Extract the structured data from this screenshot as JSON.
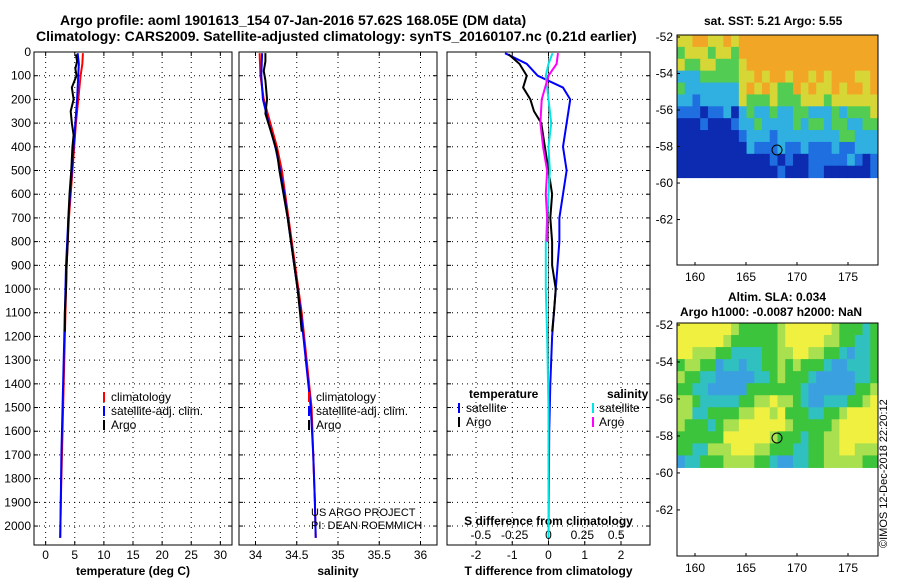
{
  "header": {
    "title_line1": "Argo profile: aoml 1901613_154 07-Jan-2016 57.62S 168.05E (DM data)",
    "title_line2": "Climatology: CARS2009. Satellite-adjusted climatology: synTS_20160107.nc (0.21d earlier)"
  },
  "colors": {
    "climatology": "#ff0000",
    "satellite": "#0000ff",
    "argo": "#000000",
    "salinity_satellite": "#00e5e5",
    "salinity_argo": "#ff00ff"
  },
  "chart_data": [
    {
      "type": "line",
      "panel": "temperature",
      "xlabel": "temperature (deg C)",
      "ylabel": "",
      "xlim": [
        -2,
        32
      ],
      "ylim": [
        2080,
        0
      ],
      "xticks": [
        0,
        5,
        10,
        15,
        20,
        25,
        30
      ],
      "yticks": [
        0,
        100,
        200,
        300,
        400,
        500,
        600,
        700,
        800,
        900,
        1000,
        1100,
        1200,
        1300,
        1400,
        1500,
        1600,
        1700,
        1800,
        1900,
        2000
      ],
      "grid": true,
      "legend": [
        "climatology",
        "satellite-adj. clim.",
        "Argo"
      ],
      "legend_position": "bottom-right",
      "series": [
        {
          "name": "climatology",
          "points": [
            [
              6.4,
              5
            ],
            [
              6.3,
              50
            ],
            [
              6.0,
              100
            ],
            [
              5.6,
              200
            ],
            [
              5.2,
              300
            ],
            [
              4.9,
              400
            ],
            [
              4.6,
              500
            ],
            [
              4.3,
              600
            ],
            [
              4.0,
              700
            ],
            [
              3.8,
              800
            ],
            [
              3.6,
              900
            ],
            [
              3.5,
              1000
            ],
            [
              3.3,
              1200
            ],
            [
              3.1,
              1400
            ],
            [
              3.0,
              1500
            ],
            [
              2.8,
              1700
            ],
            [
              2.6,
              1900
            ],
            [
              2.5,
              2050
            ]
          ]
        },
        {
          "name": "satellite-adj. clim.",
          "points": [
            [
              5.5,
              5
            ],
            [
              5.7,
              50
            ],
            [
              5.6,
              100
            ],
            [
              5.4,
              200
            ],
            [
              5.1,
              300
            ],
            [
              4.8,
              400
            ],
            [
              4.5,
              500
            ],
            [
              4.2,
              600
            ],
            [
              3.9,
              700
            ],
            [
              3.7,
              800
            ],
            [
              3.5,
              900
            ],
            [
              3.4,
              1000
            ],
            [
              3.2,
              1200
            ],
            [
              3.0,
              1400
            ],
            [
              2.9,
              1500
            ],
            [
              2.7,
              1700
            ],
            [
              2.6,
              1900
            ],
            [
              2.5,
              2050
            ]
          ]
        },
        {
          "name": "Argo",
          "points": [
            [
              5.2,
              10
            ],
            [
              5.4,
              40
            ],
            [
              5.1,
              70
            ],
            [
              5.3,
              100
            ],
            [
              4.5,
              150
            ],
            [
              4.8,
              200
            ],
            [
              4.3,
              250
            ],
            [
              4.5,
              300
            ],
            [
              4.8,
              350
            ],
            [
              4.6,
              400
            ],
            [
              4.4,
              500
            ],
            [
              4.1,
              600
            ],
            [
              3.9,
              700
            ],
            [
              3.8,
              800
            ],
            [
              3.6,
              900
            ],
            [
              3.5,
              1000
            ],
            [
              3.3,
              1100
            ],
            [
              3.3,
              1180
            ]
          ]
        }
      ]
    },
    {
      "type": "line",
      "panel": "salinity",
      "xlabel": "salinity",
      "ylabel": "",
      "xlim": [
        33.8,
        36.2
      ],
      "ylim": [
        2080,
        0
      ],
      "xticks": [
        34,
        34.5,
        35,
        35.5,
        36
      ],
      "grid": true,
      "legend": [
        "climatology",
        "satellite-adj. clim.",
        "Argo"
      ],
      "legend_position": "bottom-right",
      "annotation": [
        "US ARGO PROJECT",
        "PI: DEAN ROEMMICH"
      ],
      "series": [
        {
          "name": "climatology",
          "points": [
            [
              34.05,
              5
            ],
            [
              34.06,
              100
            ],
            [
              34.1,
              200
            ],
            [
              34.18,
              300
            ],
            [
              34.26,
              400
            ],
            [
              34.32,
              500
            ],
            [
              34.36,
              600
            ],
            [
              34.4,
              700
            ],
            [
              34.44,
              800
            ],
            [
              34.48,
              900
            ],
            [
              34.52,
              1000
            ],
            [
              34.56,
              1100
            ],
            [
              34.59,
              1200
            ],
            [
              34.62,
              1300
            ],
            [
              34.65,
              1400
            ],
            [
              34.68,
              1500
            ],
            [
              34.7,
              1700
            ],
            [
              34.72,
              1900
            ],
            [
              34.73,
              2050
            ]
          ]
        },
        {
          "name": "satellite-adj. clim.",
          "points": [
            [
              34.08,
              5
            ],
            [
              34.07,
              100
            ],
            [
              34.09,
              200
            ],
            [
              34.16,
              300
            ],
            [
              34.24,
              400
            ],
            [
              34.3,
              500
            ],
            [
              34.35,
              600
            ],
            [
              34.39,
              700
            ],
            [
              34.43,
              800
            ],
            [
              34.47,
              900
            ],
            [
              34.51,
              1000
            ],
            [
              34.55,
              1100
            ],
            [
              34.58,
              1200
            ],
            [
              34.61,
              1300
            ],
            [
              34.64,
              1400
            ],
            [
              34.67,
              1500
            ],
            [
              34.7,
              1700
            ],
            [
              34.72,
              1900
            ],
            [
              34.73,
              2050
            ]
          ]
        },
        {
          "name": "Argo",
          "points": [
            [
              34.12,
              5
            ],
            [
              34.12,
              40
            ],
            [
              34.1,
              80
            ],
            [
              34.12,
              120
            ],
            [
              34.14,
              200
            ],
            [
              34.12,
              260
            ],
            [
              34.2,
              350
            ],
            [
              34.26,
              420
            ],
            [
              34.29,
              500
            ],
            [
              34.34,
              600
            ],
            [
              34.39,
              700
            ],
            [
              34.43,
              800
            ],
            [
              34.47,
              900
            ],
            [
              34.51,
              1000
            ],
            [
              34.54,
              1100
            ],
            [
              34.56,
              1180
            ]
          ]
        }
      ]
    },
    {
      "type": "line",
      "panel": "difference",
      "xlabel": "T difference from climatology",
      "x2label": "S difference from climatology",
      "xlim": [
        -2.8,
        2.8
      ],
      "x2ticks": [
        -0.5,
        -0.25,
        0,
        0.25,
        0.5
      ],
      "x2tick_labels": [
        "-0.5",
        "-0.25",
        "0",
        "0.25",
        "0.5"
      ],
      "xticks": [
        -2,
        -1,
        0,
        1,
        2
      ],
      "ylim": [
        2080,
        0
      ],
      "grid": true,
      "legend_left_title": "temperature",
      "legend_right_title": "salinity",
      "legend_left": [
        "satellite",
        "Argo"
      ],
      "legend_right": [
        "satellite",
        "Argo"
      ],
      "series": [
        {
          "name": "satellite",
          "group": "temperature",
          "points": [
            [
              -1.2,
              5
            ],
            [
              -0.6,
              50
            ],
            [
              -0.3,
              100
            ],
            [
              0.4,
              150
            ],
            [
              0.6,
              200
            ],
            [
              0.5,
              300
            ],
            [
              0.4,
              400
            ],
            [
              0.5,
              500
            ],
            [
              0.4,
              600
            ],
            [
              0.3,
              700
            ],
            [
              0.3,
              800
            ],
            [
              0.2,
              1000
            ],
            [
              0.1,
              1200
            ],
            [
              0.05,
              1400
            ],
            [
              0.02,
              1600
            ],
            [
              0.0,
              2050
            ]
          ]
        },
        {
          "name": "Argo",
          "group": "temperature",
          "points": [
            [
              -1.1,
              10
            ],
            [
              -0.8,
              50
            ],
            [
              -0.6,
              100
            ],
            [
              -0.7,
              150
            ],
            [
              -0.5,
              200
            ],
            [
              -0.4,
              250
            ],
            [
              -0.2,
              300
            ],
            [
              -0.1,
              400
            ],
            [
              0.0,
              500
            ],
            [
              0.1,
              600
            ],
            [
              0.05,
              700
            ],
            [
              0.1,
              800
            ],
            [
              0.1,
              900
            ],
            [
              0.2,
              1000
            ],
            [
              0.15,
              1100
            ],
            [
              0.1,
              1180
            ]
          ]
        },
        {
          "name": "satellite",
          "group": "salinity",
          "points": [
            [
              0.03,
              5
            ],
            [
              0.0,
              50
            ],
            [
              -0.02,
              100
            ],
            [
              0.0,
              200
            ],
            [
              0.02,
              300
            ],
            [
              0.0,
              400
            ],
            [
              0.01,
              500
            ],
            [
              0.0,
              600
            ],
            [
              -0.01,
              700
            ],
            [
              -0.02,
              800
            ],
            [
              -0.02,
              1000
            ],
            [
              -0.01,
              1200
            ],
            [
              0.0,
              1500
            ],
            [
              0.0,
              2050
            ]
          ]
        },
        {
          "name": "Argo",
          "group": "salinity",
          "points": [
            [
              0.07,
              5
            ],
            [
              0.06,
              50
            ],
            [
              0.0,
              100
            ],
            [
              -0.05,
              200
            ],
            [
              -0.06,
              300
            ],
            [
              -0.04,
              400
            ],
            [
              -0.01,
              500
            ],
            [
              -0.02,
              600
            ],
            [
              -0.01,
              700
            ],
            [
              -0.01,
              800
            ]
          ]
        }
      ]
    }
  ],
  "maps": {
    "sst": {
      "title": "sat. SST: 5.21 Argo: 5.55",
      "xticks": [
        "160",
        "165",
        "170",
        "175"
      ],
      "yticks": [
        "-52",
        "-54",
        "-56",
        "-58",
        "-60",
        "-62"
      ]
    },
    "sla": {
      "title_line1": "Altim. SLA: 0.034",
      "title_line2": "Argo h1000: -0.0087 h2000: NaN",
      "xticks": [
        "160",
        "165",
        "170",
        "175"
      ],
      "yticks": [
        "-52",
        "-54",
        "-56",
        "-58",
        "-60",
        "-62"
      ]
    }
  },
  "footer": {
    "credit": "©IMOS 12-Dec-2018 22:20:12"
  }
}
